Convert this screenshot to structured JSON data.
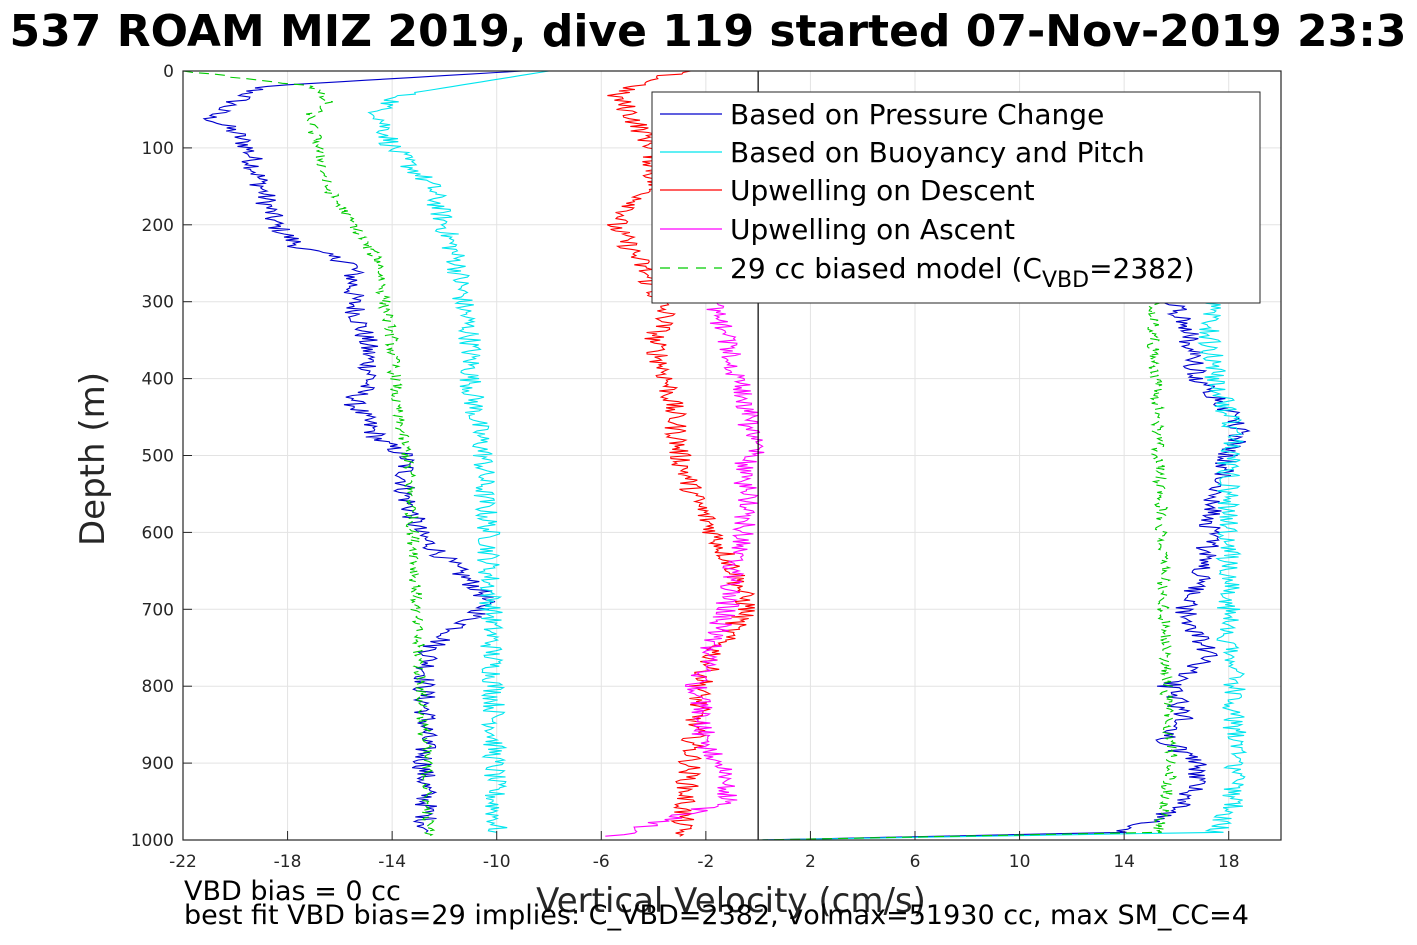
{
  "chart_data": {
    "type": "line",
    "title": "537 ROAM MIZ 2019, dive 119 started 07-Nov-2019 23:3",
    "xlabel": "Vertical Velocity (cm/s)",
    "ylabel": "Depth (m)",
    "xlim": [
      -22,
      20
    ],
    "ylim": [
      0,
      1000
    ],
    "y_reversed": true,
    "grid": true,
    "legend_position": "top-right",
    "x_ticks": [
      "-22",
      "-18",
      "-14",
      "-10",
      "-6",
      "-2",
      "2",
      "6",
      "10",
      "14",
      "18"
    ],
    "y_ticks": [
      "0",
      "100",
      "200",
      "300",
      "400",
      "500",
      "600",
      "700",
      "800",
      "900",
      "1000"
    ],
    "legend": {
      "s1": "Based on Pressure Change",
      "s2": "Based on Buoyancy and Pitch",
      "s3": "Upwelling on Descent",
      "s4": "Upwelling on Ascent",
      "s5_prefix": "29 cc biased model (C",
      "s5_sub": "VBD",
      "s5_suffix": "=2382)"
    },
    "colors": {
      "pressure": "#0000cc",
      "buoyancy": "#00e5ee",
      "up_descent": "#ff0000",
      "up_ascent": "#ff00ff",
      "model": "#00cc00"
    },
    "series": [
      {
        "id": "pressure_descent",
        "name": "Based on Pressure Change",
        "color": "#0000cc",
        "depth": [
          0,
          20,
          40,
          60,
          80,
          100,
          150,
          200,
          230,
          250,
          300,
          350,
          400,
          430,
          480,
          500,
          550,
          600,
          650,
          680,
          700,
          750,
          800,
          850,
          900,
          950,
          990
        ],
        "values": [
          -9,
          -19,
          -20,
          -21,
          -20,
          -19.5,
          -19,
          -18.5,
          -17.5,
          -15.5,
          -15.5,
          -15,
          -14.8,
          -15.5,
          -14.5,
          -13.5,
          -13.5,
          -13,
          -11.5,
          -10.5,
          -10.5,
          -12.5,
          -12.8,
          -12.7,
          -12.8,
          -12.7,
          -12.7
        ]
      },
      {
        "id": "pressure_ascent",
        "name": "Based on Pressure Change",
        "color": "#0000cc",
        "depth": [
          1000,
          990,
          960,
          930,
          900,
          870,
          840,
          800,
          760,
          700,
          650,
          600,
          550,
          500,
          470,
          430,
          400,
          350,
          320,
          300
        ],
        "values": [
          0,
          14,
          16,
          16.8,
          16.8,
          15.5,
          16.3,
          15.7,
          17.2,
          16.3,
          17.0,
          17.3,
          17.5,
          18.0,
          18.5,
          17.8,
          16.8,
          16.5,
          16.2,
          15.8
        ]
      },
      {
        "id": "buoyancy_descent",
        "name": "Based on Buoyancy and Pitch",
        "color": "#00e5ee",
        "depth": [
          0,
          30,
          50,
          100,
          150,
          200,
          250,
          300,
          350,
          400,
          450,
          500,
          550,
          600,
          650,
          700,
          750,
          800,
          850,
          900,
          950,
          990
        ],
        "values": [
          -8,
          -13.5,
          -14.5,
          -14,
          -12.5,
          -12,
          -11.5,
          -11.3,
          -11,
          -11,
          -10.8,
          -10.5,
          -10.5,
          -10.3,
          -10.3,
          -10.2,
          -10.2,
          -10.1,
          -10.1,
          -10.1,
          -10.1,
          -10
        ]
      },
      {
        "id": "buoyancy_ascent",
        "name": "Based on Buoyancy and Pitch",
        "color": "#00e5ee",
        "depth": [
          1000,
          990,
          950,
          900,
          850,
          800,
          750,
          700,
          650,
          600,
          550,
          500,
          470,
          430,
          400,
          350,
          300
        ],
        "values": [
          0,
          17.5,
          18.2,
          18.3,
          18.2,
          18.2,
          18,
          18,
          18,
          18,
          18,
          18,
          18.2,
          17.8,
          17.5,
          17.3,
          17.3
        ]
      },
      {
        "id": "up_descent",
        "name": "Upwelling on Descent",
        "color": "#ff0000",
        "depth": [
          0,
          30,
          50,
          100,
          150,
          200,
          250,
          320,
          350,
          400,
          450,
          500,
          550,
          600,
          650,
          700,
          750,
          800,
          850,
          900,
          950,
          995
        ],
        "values": [
          -3,
          -5.5,
          -5,
          -4,
          -4,
          -5.5,
          -4.5,
          -3.5,
          -4,
          -3.5,
          -3.2,
          -3,
          -2.5,
          -1.7,
          -0.9,
          -0.4,
          -1.6,
          -2.2,
          -2.4,
          -2.6,
          -2.8,
          -3
        ]
      },
      {
        "id": "up_ascent",
        "name": "Upwelling on Ascent",
        "color": "#ff00ff",
        "depth": [
          995,
          950,
          900,
          870,
          850,
          800,
          750,
          700,
          650,
          600,
          550,
          520,
          500,
          470,
          430,
          400,
          350,
          300
        ],
        "values": [
          -5.5,
          -1.2,
          -1.4,
          -2.2,
          -2.0,
          -2.4,
          -1.8,
          -1.2,
          -1,
          -0.6,
          -0.4,
          -0.7,
          -0.2,
          -0.3,
          -0.5,
          -0.8,
          -1.2,
          -1.7
        ]
      },
      {
        "id": "model_descent",
        "name": "29 cc biased model (CVBD=2382)",
        "color": "#00cc00",
        "depth": [
          0,
          20,
          40,
          60,
          100,
          150,
          200,
          250,
          300,
          350,
          400,
          450,
          500,
          550,
          600,
          650,
          700,
          750,
          800,
          850,
          900,
          950,
          995
        ],
        "values": [
          -22,
          -17,
          -16.5,
          -17.2,
          -16.8,
          -16.5,
          -15.5,
          -14.5,
          -14.3,
          -14,
          -13.9,
          -13.8,
          -13.4,
          -13.3,
          -13.2,
          -13.1,
          -13.1,
          -13,
          -12.9,
          -12.8,
          -12.7,
          -12.7,
          -12.6
        ]
      },
      {
        "id": "model_ascent",
        "name": "29 cc biased model (CVBD=2382)",
        "color": "#00cc00",
        "depth": [
          1000,
          990,
          950,
          900,
          850,
          800,
          750,
          700,
          650,
          600,
          550,
          500,
          450,
          400,
          350,
          300
        ],
        "values": [
          0,
          15.3,
          15.6,
          15.8,
          15.7,
          15.6,
          15.6,
          15.5,
          15.5,
          15.4,
          15.4,
          15.3,
          15.3,
          15.2,
          15.1,
          15.1
        ]
      }
    ]
  },
  "footer": {
    "line1": "VBD bias = 0 cc",
    "line2": "best fit VBD bias=29 implies: C_VBD=2382, volmax=51930 cc, max SM_CC=4"
  }
}
